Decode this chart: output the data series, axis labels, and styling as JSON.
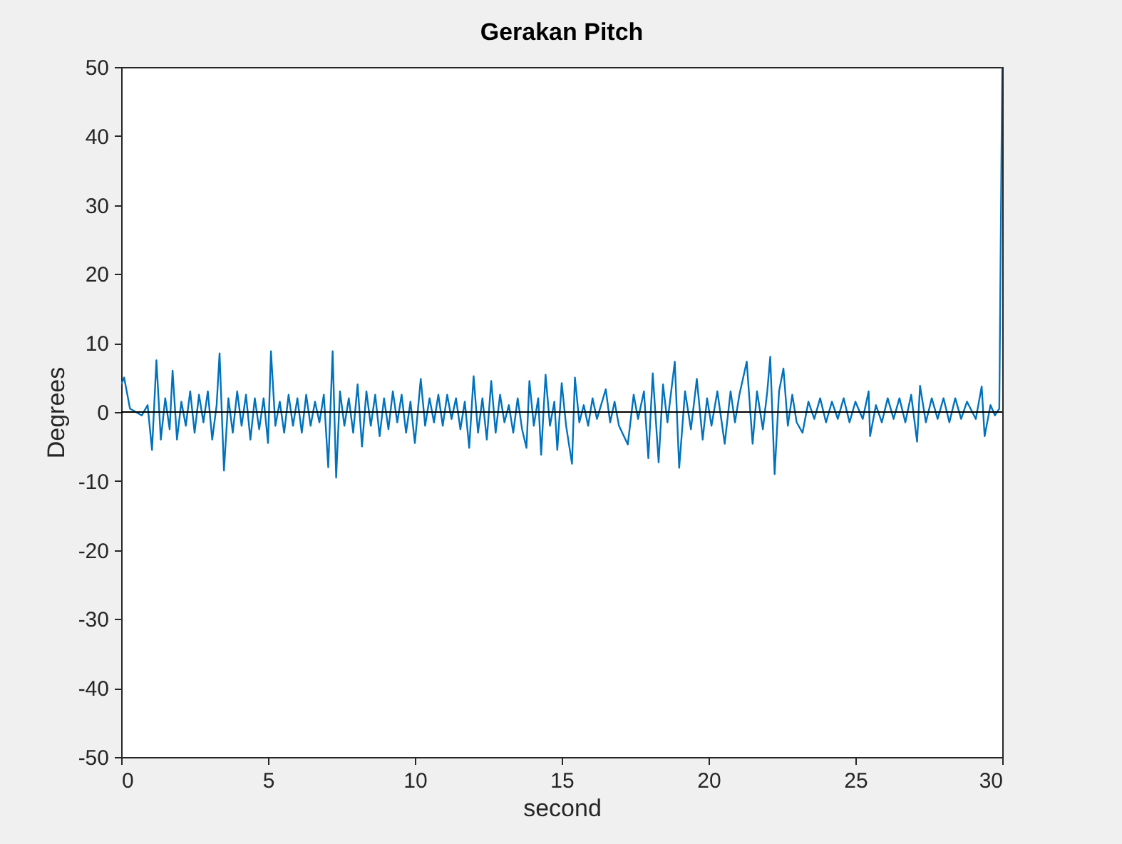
{
  "chart_data": {
    "type": "line",
    "title": "Gerakan Pitch",
    "xlabel": "second",
    "ylabel": "Degrees",
    "xlim": [
      0,
      30
    ],
    "ylim": [
      -50,
      50
    ],
    "xticks": [
      0,
      5,
      10,
      15,
      20,
      25,
      30
    ],
    "yticks": [
      -50,
      -40,
      -30,
      -20,
      -10,
      0,
      10,
      20,
      30,
      40,
      50
    ],
    "grid": false,
    "legend": false,
    "marker": "none",
    "line_style": "solid",
    "ref_lines": [
      {
        "axis": "y",
        "value": 0,
        "color": "#000000"
      }
    ],
    "x": [
      0,
      0.1,
      0.3,
      0.5,
      0.7,
      0.9,
      1.05,
      1.2,
      1.35,
      1.5,
      1.65,
      1.75,
      1.9,
      2.05,
      2.2,
      2.35,
      2.5,
      2.65,
      2.8,
      2.95,
      3.1,
      3.25,
      3.35,
      3.5,
      3.65,
      3.8,
      3.95,
      4.1,
      4.25,
      4.4,
      4.55,
      4.7,
      4.85,
      5.0,
      5.1,
      5.25,
      5.4,
      5.55,
      5.7,
      5.85,
      6.0,
      6.15,
      6.3,
      6.45,
      6.6,
      6.75,
      6.9,
      7.05,
      7.2,
      7.32,
      7.45,
      7.6,
      7.75,
      7.9,
      8.05,
      8.2,
      8.35,
      8.5,
      8.65,
      8.8,
      8.95,
      9.1,
      9.25,
      9.4,
      9.55,
      9.7,
      9.85,
      10.0,
      10.2,
      10.35,
      10.5,
      10.65,
      10.8,
      10.95,
      11.1,
      11.25,
      11.4,
      11.55,
      11.7,
      11.85,
      12.0,
      12.15,
      12.3,
      12.45,
      12.6,
      12.75,
      12.9,
      13.05,
      13.2,
      13.35,
      13.5,
      13.65,
      13.8,
      13.9,
      14.05,
      14.2,
      14.3,
      14.45,
      14.6,
      14.75,
      14.85,
      15.0,
      15.15,
      15.35,
      15.45,
      15.6,
      15.75,
      15.9,
      16.05,
      16.2,
      16.5,
      16.65,
      16.8,
      16.95,
      17.25,
      17.45,
      17.6,
      17.8,
      17.95,
      18.1,
      18.3,
      18.45,
      18.6,
      18.85,
      19.0,
      19.2,
      19.4,
      19.6,
      19.8,
      19.95,
      20.1,
      20.3,
      20.55,
      20.75,
      20.9,
      21.05,
      21.3,
      21.5,
      21.65,
      21.85,
      22.0,
      22.1,
      22.25,
      22.4,
      22.55,
      22.7,
      22.85,
      23.0,
      23.2,
      23.4,
      23.6,
      23.8,
      24.0,
      24.2,
      24.4,
      24.6,
      24.8,
      25.0,
      25.25,
      25.45,
      25.5,
      25.7,
      25.9,
      26.1,
      26.3,
      26.5,
      26.7,
      26.9,
      27.1,
      27.2,
      27.4,
      27.6,
      27.8,
      28.0,
      28.2,
      28.4,
      28.6,
      28.8,
      29.1,
      29.3,
      29.4,
      29.6,
      29.75,
      29.9,
      30
    ],
    "series": [
      {
        "color": "#0072bd",
        "values": [
          4,
          5,
          0.5,
          0,
          -0.5,
          1,
          -5.5,
          7.5,
          -4,
          2,
          -2.5,
          6,
          -4,
          1.5,
          -2,
          3,
          -3,
          2.5,
          -1.5,
          3,
          -4,
          1,
          8.5,
          -8.5,
          2,
          -3,
          3,
          -2,
          2.5,
          -4,
          2,
          -2.5,
          2,
          -4.5,
          8.8,
          -2,
          1.5,
          -3,
          2.5,
          -2,
          2,
          -3,
          2.5,
          -2,
          1.5,
          -1.5,
          2.5,
          -8,
          8.8,
          -9.5,
          3,
          -2,
          2,
          -3,
          4,
          -5,
          3,
          -2,
          2.5,
          -3.5,
          2,
          -2.5,
          3,
          -1.5,
          2.5,
          -3,
          1.5,
          -4.5,
          4.8,
          -2,
          2,
          -1.5,
          2.5,
          -2,
          2.5,
          -1,
          2,
          -2.5,
          1.5,
          -5.2,
          5.2,
          -3,
          2,
          -4,
          4.5,
          -3,
          2.5,
          -1.5,
          1,
          -3,
          2,
          -2.5,
          -5.2,
          4.5,
          -2,
          2,
          -6.2,
          5.4,
          -2,
          1.5,
          -5.5,
          4.2,
          -2,
          -7.5,
          5,
          -1.5,
          1,
          -2,
          2,
          -1,
          3.3,
          -1.5,
          1.5,
          -2,
          -4.7,
          2.5,
          -1,
          3,
          -6.7,
          5.6,
          -7.3,
          4,
          -1.5,
          7.3,
          -8.1,
          3,
          -2.5,
          4.8,
          -4,
          2,
          -2,
          3,
          -4.6,
          3,
          -1.5,
          2.5,
          7.3,
          -4.6,
          3,
          -2.5,
          3,
          8,
          -9,
          3,
          6.3,
          -2,
          2.5,
          -1.5,
          -3,
          1.5,
          -1,
          2,
          -1.5,
          1.5,
          -1,
          2,
          -1.5,
          1.5,
          -1,
          3,
          -3.5,
          1,
          -1.5,
          2,
          -1,
          2,
          -1.5,
          2.5,
          -4.3,
          3.8,
          -1.5,
          2,
          -1,
          2,
          -1.5,
          2,
          -1,
          1.5,
          -1,
          3.7,
          -3.5,
          1,
          -0.5,
          0.5,
          50
        ]
      }
    ]
  }
}
